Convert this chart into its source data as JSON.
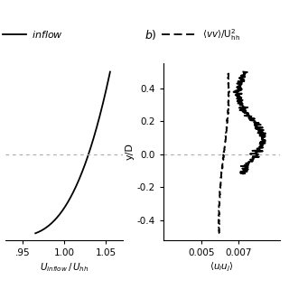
{
  "left_panel": {
    "xlabel": "$U_{inflow}\\,/\\,U_{hh}$",
    "xlim": [
      0.93,
      1.07
    ],
    "xticks": [
      0.95,
      1.0,
      1.05
    ],
    "xtick_labels": [
      ".95",
      "1.00",
      "1.05"
    ],
    "ylim": [
      -0.52,
      0.55
    ]
  },
  "right_panel": {
    "xlabel": "$\\langle u_i u_j \\rangle$",
    "xlim": [
      0.003,
      0.0092
    ],
    "xticks": [
      0.005,
      0.007
    ],
    "xtick_labels": [
      "0.005",
      "0.007"
    ],
    "ylim": [
      -0.52,
      0.55
    ],
    "ylabel": "y/D",
    "yticks": [
      -0.4,
      -0.2,
      0.0,
      0.2,
      0.4
    ],
    "ytick_labels": [
      "-0.4",
      "-0.2",
      "0.0",
      "0.2",
      "0.4"
    ]
  },
  "label_b": "b)",
  "hline_y": 0.0,
  "hline_color": "#b0b0b0",
  "line_color": "black",
  "background_color": "white"
}
